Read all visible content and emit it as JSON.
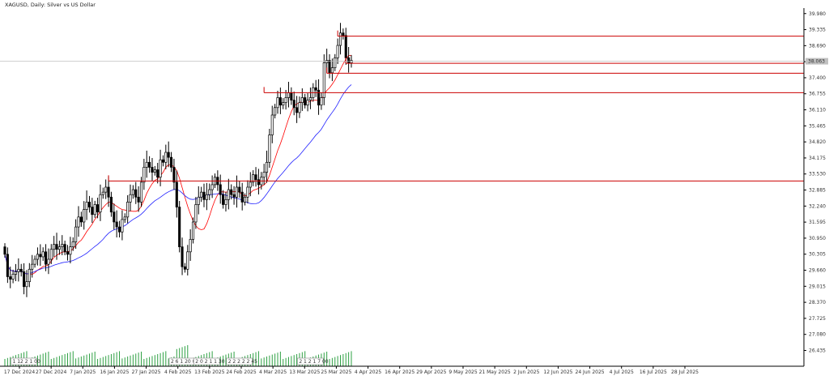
{
  "header": {
    "title": "XAGUSD, Daily:  Silver vs US Dollar"
  },
  "colors": {
    "background": "#ffffff",
    "axis": "#000000",
    "candle_up_fill": "#ffffff",
    "candle_down_fill": "#000000",
    "candle_outline": "#000000",
    "ma_fast": "#ff0000",
    "ma_slow": "#2020ff",
    "level_line": "#cc0000",
    "volume": "#2ea043",
    "bid_line": "#c0c0c0",
    "price_tag_bg": "#c0c0c0",
    "price_tag_text": "#ffffff"
  },
  "chart_data": {
    "type": "candlestick",
    "symbol": "XAGUSD",
    "timeframe": "Daily",
    "y_axis": {
      "range": [
        25.8,
        40.2
      ],
      "ticks": [
        "39.980",
        "39.335",
        "38.690",
        "38.045",
        "37.400",
        "36.755",
        "36.110",
        "35.465",
        "34.820",
        "34.175",
        "33.530",
        "32.885",
        "32.240",
        "31.595",
        "30.950",
        "30.305",
        "29.660",
        "29.015",
        "28.370",
        "27.725",
        "27.080",
        "26.435"
      ]
    },
    "x_axis": {
      "ticks": [
        "17 Dec 2024",
        "27 Dec 2024",
        "7 Jan 2025",
        "16 Jan 2025",
        "27 Jan 2025",
        "4 Feb 2025",
        "13 Feb 2025",
        "24 Feb 2025",
        "4 Mar 2025",
        "13 Mar 2025",
        "25 Mar 2025",
        "4 Apr 2025",
        "16 Apr 2025",
        "29 Apr 2025",
        "9 May 2025",
        "21 May 2025",
        "2 Jun 2025",
        "12 Jun 2025",
        "24 Jun 2025",
        "4 Jul 2025",
        "16 Jul 2025",
        "28 Jul 2025"
      ]
    },
    "current_price": "38.063",
    "closes": [
      30.3,
      29.4,
      29.3,
      29.5,
      29.6,
      29.7,
      29.6,
      29.0,
      29.2,
      29.7,
      29.9,
      30.1,
      30.3,
      30.2,
      30.4,
      29.9,
      30.1,
      30.5,
      30.7,
      30.5,
      30.6,
      30.7,
      30.4,
      30.3,
      30.6,
      30.8,
      31.4,
      31.8,
      31.6,
      32.1,
      32.4,
      32.2,
      31.9,
      32.3,
      32.0,
      32.7,
      32.8,
      33.0,
      32.6,
      32.0,
      31.6,
      31.4,
      31.2,
      31.7,
      31.8,
      32.4,
      32.7,
      32.9,
      32.6,
      32.4,
      33.2,
      33.8,
      34.0,
      33.8,
      33.6,
      33.7,
      33.4,
      34.1,
      34.0,
      34.4,
      34.2,
      33.8,
      33.2,
      32.2,
      30.6,
      29.8,
      29.7,
      30.4,
      30.9,
      31.6,
      32.3,
      32.6,
      32.8,
      32.5,
      32.7,
      32.9,
      33.1,
      33.4,
      33.1,
      32.7,
      32.3,
      32.5,
      32.9,
      32.7,
      32.6,
      33.0,
      32.8,
      32.4,
      32.6,
      33.0,
      33.2,
      33.5,
      33.3,
      33.1,
      33.4,
      33.6,
      34.0,
      35.1,
      35.9,
      36.2,
      36.6,
      36.3,
      36.4,
      36.6,
      36.8,
      36.5,
      36.2,
      36.0,
      36.4,
      36.6,
      36.3,
      36.5,
      36.6,
      37.0,
      36.9,
      36.3,
      36.6,
      38.0,
      38.1,
      37.6,
      37.8,
      38.2,
      38.7,
      39.2,
      39.1,
      38.2,
      38.0,
      38.1
    ],
    "ma_fast_name": "",
    "ma_slow_name": "",
    "levels": [
      {
        "price": 33.25,
        "from_index": 38
      },
      {
        "price": 36.8,
        "from_index": 95
      },
      {
        "price": 39.07,
        "from_index": 122
      },
      {
        "price": 37.98,
        "from_index": 125
      },
      {
        "price": 37.58,
        "from_index": 118
      }
    ],
    "volume_labels": [
      "1 12 2 1 00",
      "2 6 1 20 00",
      "2 0 2 1 1 30",
      "2 2 2 2 2 45",
      "2 1 2 1 7 00"
    ],
    "volume_label_indices": [
      4,
      62,
      71,
      83,
      109
    ]
  }
}
